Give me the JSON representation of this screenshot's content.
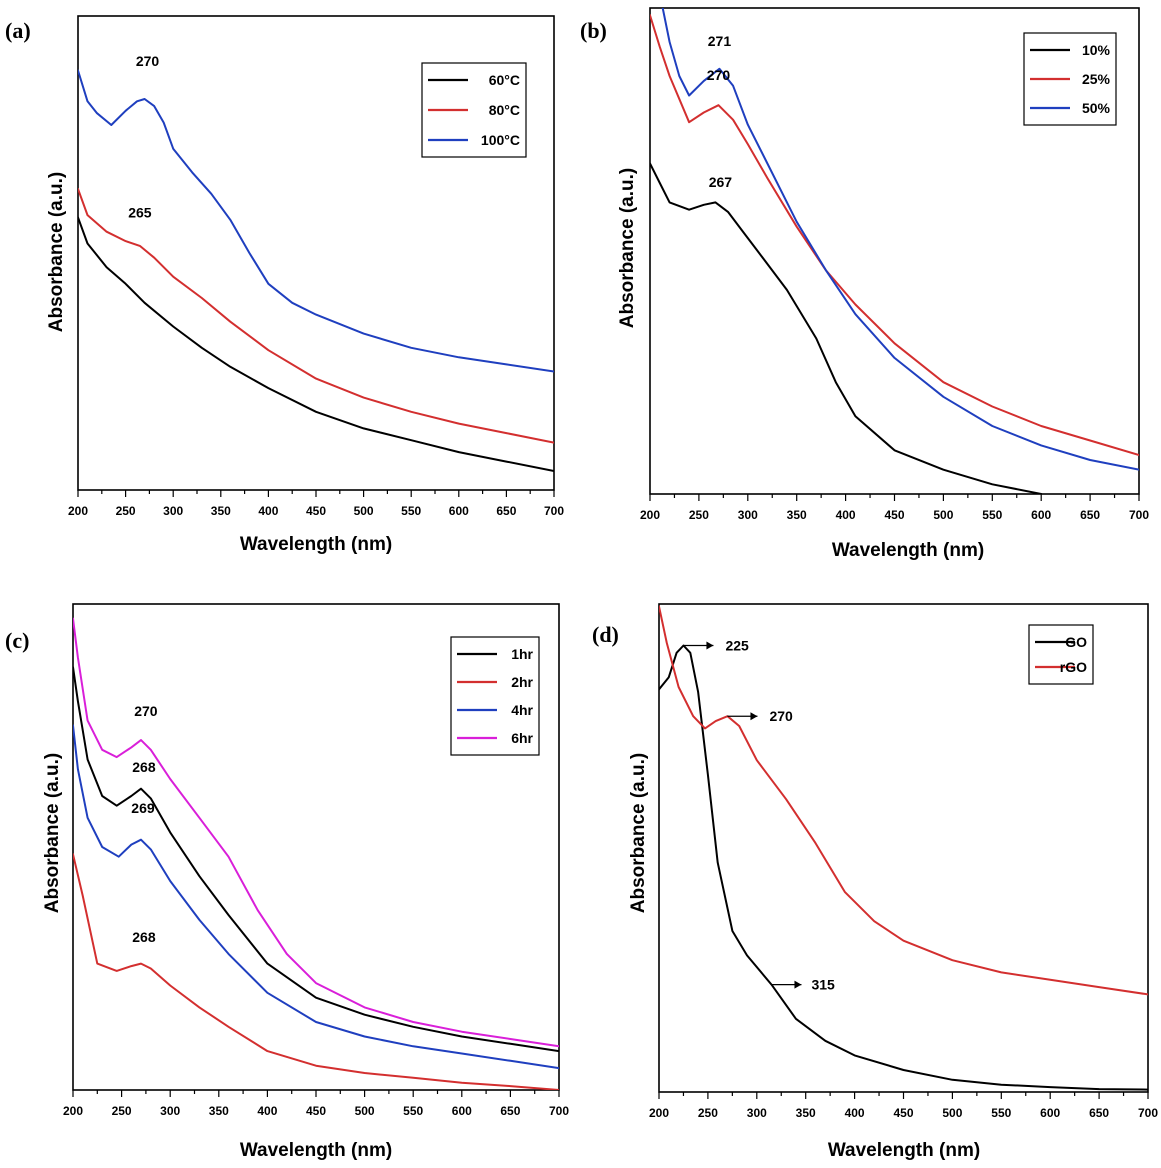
{
  "chart_data": [
    {
      "type": "line",
      "panel_label": "(a)",
      "xlabel": "Wavelength (nm)",
      "ylabel": "Absorbance (a.u.)",
      "xlim": [
        200,
        700
      ],
      "ylim": [
        0,
        1
      ],
      "x_ticks": [
        "200",
        "250",
        "300",
        "350",
        "400",
        "450",
        "500",
        "550",
        "600",
        "650",
        "700"
      ],
      "y_ticks_shown": false,
      "legend_position": "top-right",
      "series": [
        {
          "name": "60°C",
          "color": "#000000",
          "x": [
            200,
            210,
            230,
            250,
            270,
            300,
            330,
            360,
            400,
            450,
            500,
            550,
            600,
            650,
            700
          ],
          "y": [
            0.575,
            0.52,
            0.47,
            0.435,
            0.395,
            0.345,
            0.3,
            0.26,
            0.215,
            0.165,
            0.13,
            0.105,
            0.08,
            0.06,
            0.04
          ]
        },
        {
          "name": "80°C",
          "color": "#d32f2f",
          "x": [
            200,
            210,
            230,
            250,
            265,
            280,
            300,
            330,
            360,
            400,
            450,
            500,
            550,
            600,
            650,
            700
          ],
          "y": [
            0.635,
            0.58,
            0.545,
            0.525,
            0.515,
            0.49,
            0.45,
            0.405,
            0.355,
            0.295,
            0.235,
            0.195,
            0.165,
            0.14,
            0.12,
            0.1
          ]
        },
        {
          "name": "100°C",
          "color": "#1f3fbf",
          "x": [
            200,
            210,
            220,
            235,
            250,
            262,
            270,
            280,
            290,
            300,
            320,
            340,
            360,
            380,
            400,
            425,
            450,
            500,
            550,
            600,
            650,
            700
          ],
          "y": [
            0.885,
            0.82,
            0.795,
            0.77,
            0.8,
            0.82,
            0.825,
            0.81,
            0.775,
            0.72,
            0.67,
            0.625,
            0.57,
            0.5,
            0.435,
            0.395,
            0.37,
            0.33,
            0.3,
            0.28,
            0.265,
            0.25
          ]
        }
      ],
      "annotations": [
        {
          "text": "270",
          "x": 273,
          "y": 0.865
        },
        {
          "text": "265",
          "x": 265,
          "y": 0.545
        }
      ]
    },
    {
      "type": "line",
      "panel_label": "(b)",
      "xlabel": "Wavelength (nm)",
      "ylabel": "Absorbance (a.u.)",
      "xlim": [
        200,
        700
      ],
      "ylim": [
        0,
        1
      ],
      "x_ticks": [
        "200",
        "250",
        "300",
        "350",
        "400",
        "450",
        "500",
        "550",
        "600",
        "650",
        "700"
      ],
      "y_ticks_shown": false,
      "legend_position": "top-right",
      "series": [
        {
          "name": "10%",
          "color": "#000000",
          "x": [
            200,
            210,
            220,
            240,
            255,
            267,
            280,
            295,
            310,
            340,
            370,
            390,
            410,
            450,
            500,
            550,
            600
          ],
          "y": [
            0.68,
            0.64,
            0.6,
            0.585,
            0.595,
            0.6,
            0.58,
            0.54,
            0.5,
            0.42,
            0.32,
            0.23,
            0.16,
            0.09,
            0.05,
            0.02,
            0.0
          ]
        },
        {
          "name": "25%",
          "color": "#d32f2f",
          "x": [
            200,
            210,
            220,
            240,
            255,
            270,
            285,
            300,
            320,
            350,
            380,
            410,
            450,
            500,
            550,
            600,
            650,
            700
          ],
          "y": [
            0.985,
            0.92,
            0.86,
            0.765,
            0.785,
            0.8,
            0.77,
            0.72,
            0.65,
            0.55,
            0.46,
            0.39,
            0.31,
            0.23,
            0.18,
            0.14,
            0.11,
            0.08
          ]
        },
        {
          "name": "50%",
          "color": "#1f3fbf",
          "x": [
            213,
            220,
            230,
            240,
            255,
            271,
            285,
            300,
            320,
            350,
            380,
            410,
            450,
            500,
            550,
            600,
            650,
            700
          ],
          "y": [
            1.0,
            0.93,
            0.86,
            0.82,
            0.85,
            0.875,
            0.84,
            0.76,
            0.68,
            0.56,
            0.46,
            0.37,
            0.28,
            0.2,
            0.14,
            0.1,
            0.07,
            0.05
          ]
        }
      ],
      "annotations": [
        {
          "text": "271",
          "x": 271,
          "y": 0.905
        },
        {
          "text": "270",
          "x": 270,
          "y": 0.835
        },
        {
          "text": "267",
          "x": 272,
          "y": 0.615
        }
      ]
    },
    {
      "type": "line",
      "panel_label": "(c)",
      "xlabel": "Wavelength (nm)",
      "ylabel": "Absorbance (a.u.)",
      "xlim": [
        200,
        700
      ],
      "ylim": [
        0,
        1
      ],
      "x_ticks": [
        "200",
        "250",
        "300",
        "350",
        "400",
        "450",
        "500",
        "550",
        "600",
        "650",
        "700"
      ],
      "y_ticks_shown": false,
      "legend_position": "top-right",
      "series": [
        {
          "name": "1hr",
          "color": "#000000",
          "x": [
            200,
            205,
            215,
            230,
            245,
            260,
            270,
            280,
            300,
            330,
            360,
            400,
            450,
            500,
            550,
            600,
            650,
            700
          ],
          "y": [
            0.87,
            0.8,
            0.68,
            0.605,
            0.585,
            0.605,
            0.62,
            0.6,
            0.53,
            0.44,
            0.36,
            0.26,
            0.19,
            0.155,
            0.13,
            0.11,
            0.095,
            0.08
          ]
        },
        {
          "name": "2hr",
          "color": "#d32f2f",
          "x": [
            200,
            210,
            225,
            245,
            260,
            270,
            280,
            300,
            330,
            360,
            400,
            450,
            500,
            550,
            600,
            650,
            700
          ],
          "y": [
            0.485,
            0.4,
            0.26,
            0.245,
            0.255,
            0.26,
            0.25,
            0.215,
            0.17,
            0.13,
            0.08,
            0.05,
            0.035,
            0.025,
            0.015,
            0.008,
            0.0
          ]
        },
        {
          "name": "4hr",
          "color": "#1f3fbf",
          "x": [
            200,
            205,
            215,
            230,
            247,
            260,
            270,
            280,
            300,
            330,
            360,
            400,
            450,
            500,
            550,
            600,
            650,
            700
          ],
          "y": [
            0.75,
            0.66,
            0.56,
            0.5,
            0.48,
            0.505,
            0.515,
            0.495,
            0.43,
            0.35,
            0.28,
            0.2,
            0.14,
            0.11,
            0.09,
            0.075,
            0.06,
            0.045
          ]
        },
        {
          "name": "6hr",
          "color": "#d91fd9",
          "x": [
            200,
            205,
            215,
            230,
            245,
            260,
            270,
            280,
            300,
            330,
            360,
            390,
            420,
            450,
            500,
            550,
            600,
            650,
            700
          ],
          "y": [
            0.97,
            0.89,
            0.76,
            0.7,
            0.685,
            0.705,
            0.72,
            0.7,
            0.64,
            0.56,
            0.48,
            0.37,
            0.28,
            0.22,
            0.17,
            0.14,
            0.12,
            0.105,
            0.09
          ]
        }
      ],
      "annotations": [
        {
          "text": "270",
          "x": 275,
          "y": 0.745
        },
        {
          "text": "268",
          "x": 273,
          "y": 0.63
        },
        {
          "text": "269",
          "x": 272,
          "y": 0.545
        },
        {
          "text": "268",
          "x": 273,
          "y": 0.28
        }
      ]
    },
    {
      "type": "line",
      "panel_label": "(d)",
      "xlabel": "Wavelength (nm)",
      "ylabel": "Absorbance (a.u.)",
      "xlim": [
        200,
        700
      ],
      "ylim": [
        0,
        1
      ],
      "x_ticks": [
        "200",
        "250",
        "300",
        "350",
        "400",
        "450",
        "500",
        "550",
        "600",
        "650",
        "700"
      ],
      "y_ticks_shown": false,
      "legend_position": "top-right",
      "series": [
        {
          "name": "GO",
          "color": "#000000",
          "x": [
            200,
            210,
            218,
            225,
            232,
            240,
            250,
            260,
            275,
            290,
            315,
            340,
            370,
            400,
            450,
            500,
            550,
            600,
            650,
            700
          ],
          "y": [
            0.825,
            0.85,
            0.9,
            0.915,
            0.9,
            0.82,
            0.65,
            0.47,
            0.33,
            0.28,
            0.22,
            0.15,
            0.105,
            0.075,
            0.045,
            0.025,
            0.015,
            0.01,
            0.006,
            0.005
          ]
        },
        {
          "name": "rGO",
          "color": "#d32f2f",
          "x": [
            200,
            208,
            220,
            235,
            247,
            258,
            270,
            282,
            300,
            330,
            360,
            390,
            420,
            450,
            500,
            550,
            600,
            650,
            700
          ],
          "y": [
            0.995,
            0.92,
            0.83,
            0.77,
            0.745,
            0.76,
            0.77,
            0.75,
            0.68,
            0.6,
            0.51,
            0.41,
            0.35,
            0.31,
            0.27,
            0.245,
            0.23,
            0.215,
            0.2
          ]
        }
      ],
      "annotations": [
        {
          "text": "225",
          "x": 225,
          "y": 0.915,
          "arrow": true
        },
        {
          "text": "270",
          "x": 270,
          "y": 0.77,
          "arrow": true
        },
        {
          "text": "315",
          "x": 315,
          "y": 0.22,
          "arrow": true
        }
      ]
    }
  ]
}
